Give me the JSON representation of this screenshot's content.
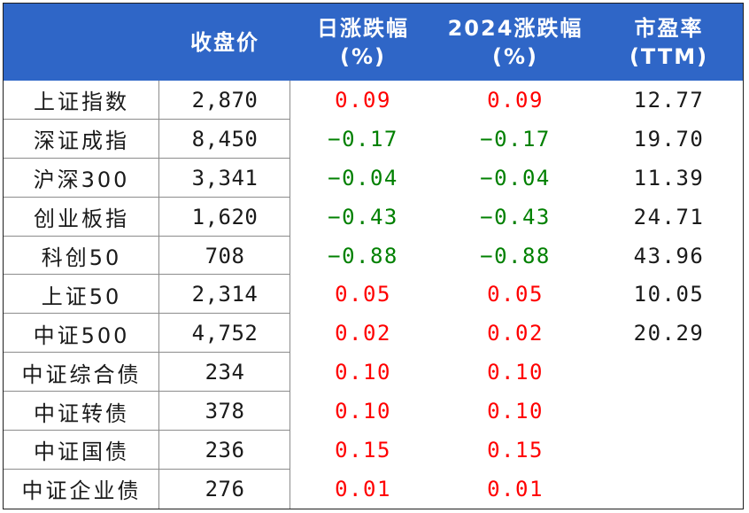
{
  "colors": {
    "header_bg": "#2f66c7",
    "header_text": "#ffffff",
    "positive": "#ff0000",
    "negative": "#008000",
    "text": "#1a1a1a"
  },
  "table": {
    "headers": [
      [
        "",
        ""
      ],
      [
        "收盘价",
        ""
      ],
      [
        "日涨跌幅",
        "(%)"
      ],
      [
        "2024涨跌幅",
        "(%)"
      ],
      [
        "市盈率",
        "(TTM)"
      ]
    ],
    "rows": [
      {
        "name": "上证指数",
        "close": "2,870",
        "day": "0.09",
        "ytd": "0.09",
        "pe": "12.77",
        "sign": "pos"
      },
      {
        "name": "深证成指",
        "close": "8,450",
        "day": "−0.17",
        "ytd": "−0.17",
        "pe": "19.70",
        "sign": "neg"
      },
      {
        "name": "沪深300",
        "close": "3,341",
        "day": "−0.04",
        "ytd": "−0.04",
        "pe": "11.39",
        "sign": "neg"
      },
      {
        "name": "创业板指",
        "close": "1,620",
        "day": "−0.43",
        "ytd": "−0.43",
        "pe": "24.71",
        "sign": "neg"
      },
      {
        "name": "科创50",
        "close": "708",
        "day": "−0.88",
        "ytd": "−0.88",
        "pe": "43.96",
        "sign": "neg"
      },
      {
        "name": "上证50",
        "close": "2,314",
        "day": "0.05",
        "ytd": "0.05",
        "pe": "10.05",
        "sign": "pos"
      },
      {
        "name": "中证500",
        "close": "4,752",
        "day": "0.02",
        "ytd": "0.02",
        "pe": "20.29",
        "sign": "pos"
      },
      {
        "name": "中证综合债",
        "close": "234",
        "day": "0.10",
        "ytd": "0.10",
        "pe": "",
        "sign": "pos"
      },
      {
        "name": "中证转债",
        "close": "378",
        "day": "0.10",
        "ytd": "0.10",
        "pe": "",
        "sign": "pos"
      },
      {
        "name": "中证国债",
        "close": "236",
        "day": "0.15",
        "ytd": "0.15",
        "pe": "",
        "sign": "pos"
      },
      {
        "name": "中证企业债",
        "close": "276",
        "day": "0.01",
        "ytd": "0.01",
        "pe": "",
        "sign": "pos"
      }
    ]
  }
}
